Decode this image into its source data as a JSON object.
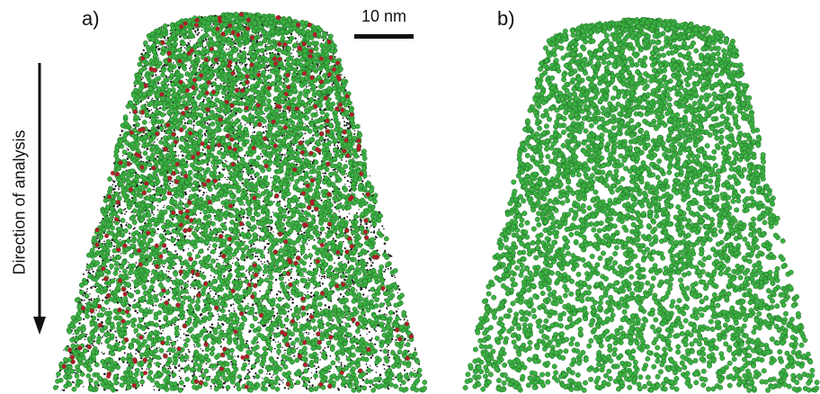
{
  "figure": {
    "panel_a": {
      "label": "a)"
    },
    "panel_b": {
      "label": "b)"
    },
    "scale_bar": {
      "text": "10 nm"
    },
    "axis_annotation": {
      "text": "Direction of analysis"
    },
    "colors": {
      "green_atom": "#3cb043",
      "green_outline": "#1d6b22",
      "red_atom": "#b01d2a",
      "black_atom": "#151515",
      "background": "#ffffff"
    },
    "icons": {
      "direction_arrow": "arrow-down-icon"
    }
  }
}
